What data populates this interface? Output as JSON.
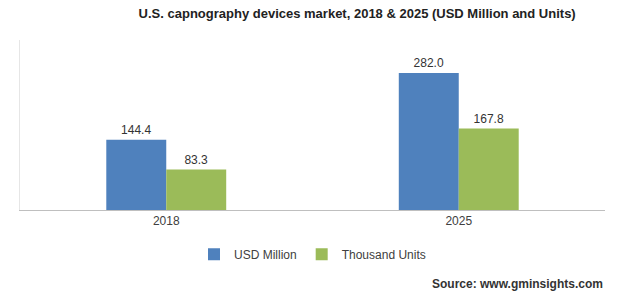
{
  "chart_data": {
    "type": "bar",
    "title": "U.S. capnography devices market, 2018 & 2025 (USD Million and Units)",
    "categories": [
      "2018",
      "2025"
    ],
    "series": [
      {
        "name": "USD Million",
        "color": "#4f81bd",
        "values": [
          144.4,
          282.0
        ],
        "value_labels": [
          "144.4",
          "282.0"
        ]
      },
      {
        "name": "Thousand Units",
        "color": "#9bbb59",
        "values": [
          83.3,
          167.8
        ],
        "value_labels": [
          "83.3",
          "167.8"
        ]
      }
    ],
    "ylim": [
      0,
      350
    ],
    "data_labels": true,
    "legend": "bottom",
    "tick_labels": "x",
    "source": "Source: www.gminsights.com"
  }
}
